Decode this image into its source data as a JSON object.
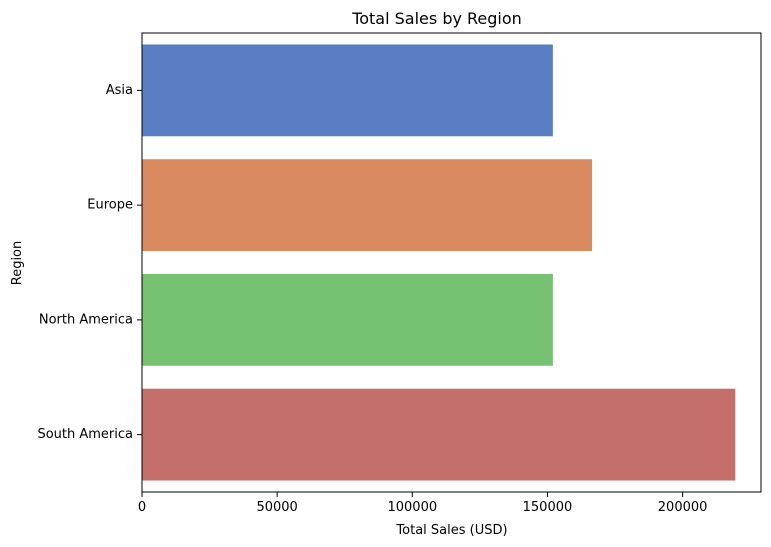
{
  "chart_data": {
    "type": "bar",
    "orientation": "horizontal",
    "title": "Total Sales by Region",
    "xlabel": "Total Sales (USD)",
    "ylabel": "Region",
    "categories": [
      "Asia",
      "Europe",
      "North America",
      "South America"
    ],
    "values": [
      152000,
      166500,
      152000,
      219500
    ],
    "colors": [
      "#5a7ec3",
      "#d98a5f",
      "#77c172",
      "#c56f6d"
    ],
    "xlim": [
      0,
      229000
    ],
    "xticks": [
      0,
      50000,
      100000,
      150000,
      200000
    ],
    "xtick_labels": [
      "0",
      "50000",
      "100000",
      "150000",
      "200000"
    ],
    "grid": false,
    "legend": false
  }
}
